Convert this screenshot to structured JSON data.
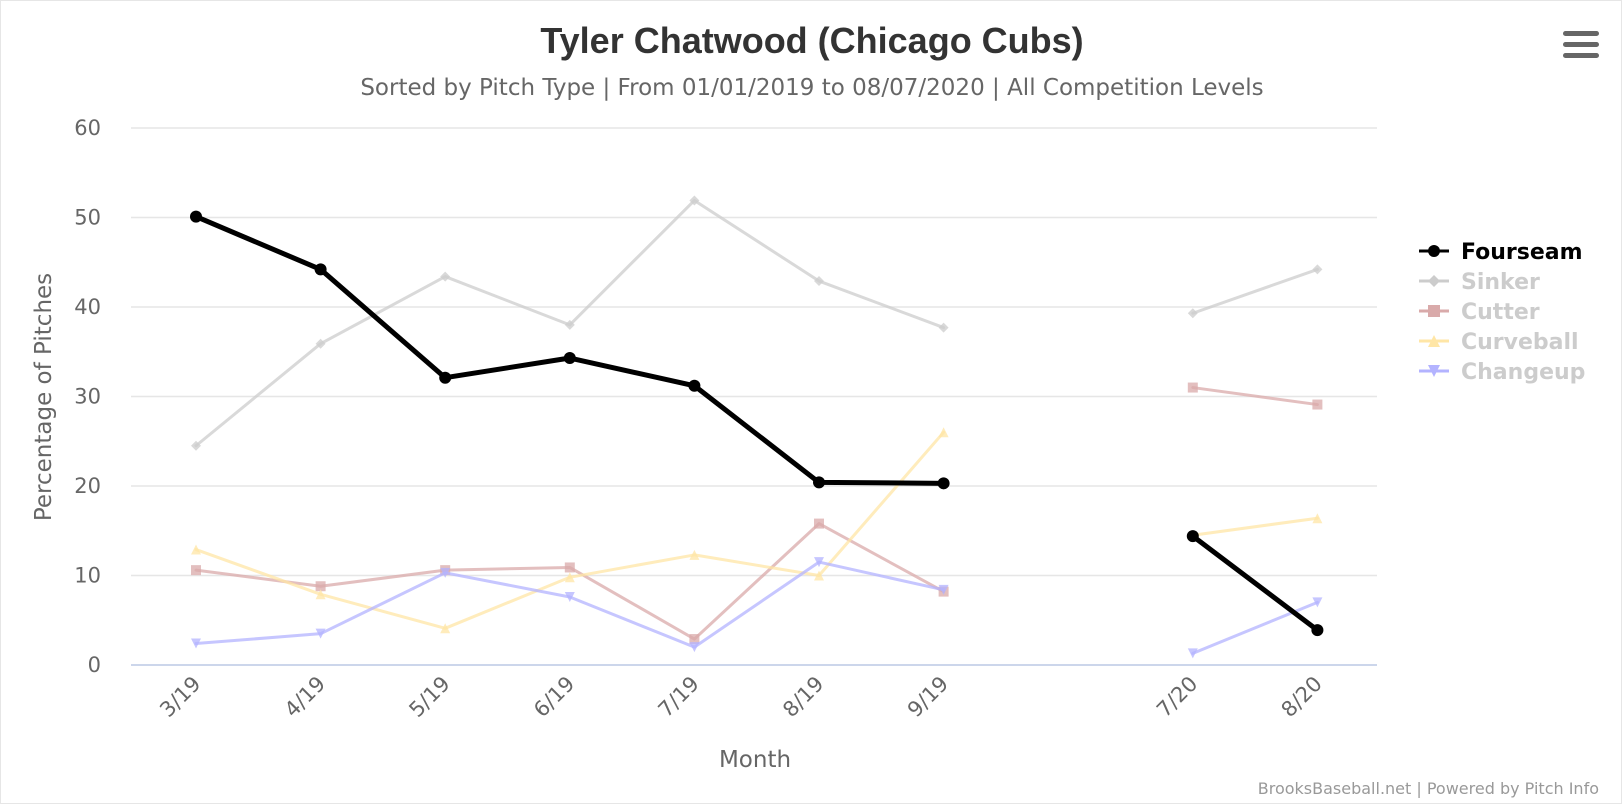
{
  "chart_data": {
    "type": "line",
    "title": "Tyler Chatwood (Chicago Cubs)",
    "subtitle": "Sorted by Pitch Type | From 01/01/2019 to 08/07/2020 | All Competition Levels",
    "xlabel": "Month",
    "ylabel": "Percentage of Pitches",
    "ylim": [
      0,
      60
    ],
    "yticks": [
      0,
      10,
      20,
      30,
      40,
      50,
      60
    ],
    "grid": true,
    "legend_position": "right",
    "categories": [
      "3/19",
      "4/19",
      "5/19",
      "6/19",
      "7/19",
      "8/19",
      "9/19",
      "7/20",
      "8/20"
    ],
    "category_slots": [
      0,
      1,
      2,
      3,
      4,
      5,
      6,
      8,
      9
    ],
    "series": [
      {
        "name": "Sinker",
        "color": "#cccccc",
        "marker": "diamond",
        "active": false,
        "values": [
          24.5,
          35.9,
          43.4,
          38.0,
          51.9,
          42.9,
          37.7,
          39.3,
          44.2
        ]
      },
      {
        "name": "Cutter",
        "color": "#d9aaaa",
        "marker": "square",
        "active": false,
        "values": [
          10.6,
          8.8,
          10.6,
          10.9,
          2.9,
          15.8,
          8.2,
          31.0,
          29.1
        ]
      },
      {
        "name": "Curveball",
        "color": "#ffe6a6",
        "marker": "triangle",
        "active": false,
        "values": [
          12.9,
          7.9,
          4.1,
          9.8,
          12.3,
          10.0,
          26.0,
          14.5,
          16.4
        ]
      },
      {
        "name": "Changeup",
        "color": "#b3b3ff",
        "marker": "triangle-down",
        "active": false,
        "values": [
          2.4,
          3.5,
          10.3,
          7.6,
          2.0,
          11.5,
          8.4,
          1.3,
          7.0
        ]
      },
      {
        "name": "Fourseam",
        "color": "#000000",
        "marker": "circle",
        "active": true,
        "values": [
          50.1,
          44.2,
          32.1,
          34.3,
          31.2,
          20.4,
          20.3,
          14.4,
          3.9
        ]
      }
    ],
    "legend_order": [
      "Fourseam",
      "Sinker",
      "Cutter",
      "Curveball",
      "Changeup"
    ]
  },
  "credit": "BrooksBaseball.net | Powered by Pitch Info",
  "menu_icon": "hamburger-menu-icon"
}
